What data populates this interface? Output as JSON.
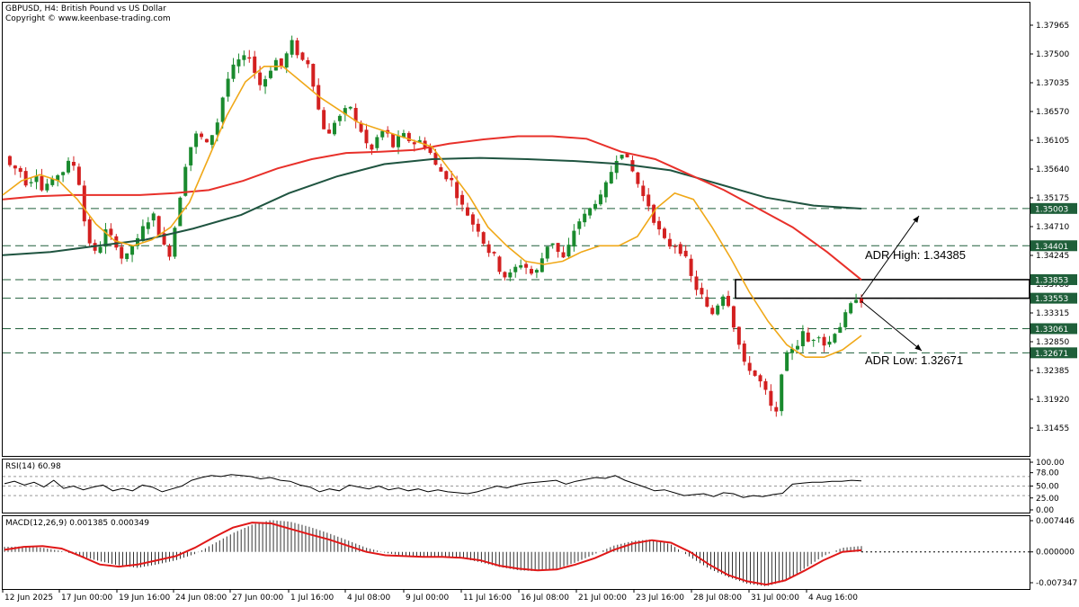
{
  "header": {
    "title": "GBPUSD, H4:  British Pound vs US Dollar",
    "copyright": "Copyright © www.keenbase-trading.com"
  },
  "colors": {
    "up": "#1a8a2e",
    "down": "#d32020",
    "ma_fast": "#f0a818",
    "ma_mid": "#e8302a",
    "ma_slow": "#1f5440",
    "level_line": "#1f5f3a",
    "macd_signal": "#e01818",
    "histogram": "#000000"
  },
  "chart_data": {
    "type": "candlestick",
    "symbol": "GBPUSD",
    "timeframe": "H4",
    "ylim": [
      1.3125,
      1.3805
    ],
    "y_ticks": [
      "1.37965",
      "1.37500",
      "1.37035",
      "1.36570",
      "1.36105",
      "1.35640",
      "1.35175",
      "1.34710",
      "1.34245",
      "1.33780",
      "1.33315",
      "1.32850",
      "1.32385",
      "1.31920",
      "1.31455"
    ],
    "x_ticks": [
      "12 Jun 2025",
      "17 Jun 00:00",
      "19 Jun 16:00",
      "24 Jun 08:00",
      "27 Jun 00:00",
      "1 Jul 16:00",
      "4 Jul 08:00",
      "9 Jul 00:00",
      "11 Jul 16:00",
      "16 Jul 08:00",
      "21 Jul 00:00",
      "23 Jul 16:00",
      "28 Jul 08:00",
      "31 Jul 00:00",
      "4 Aug 16:00"
    ],
    "price_path": [
      1.3585,
      1.357,
      1.3565,
      1.356,
      1.354,
      1.3545,
      1.3555,
      1.353,
      1.354,
      1.3545,
      1.3555,
      1.356,
      1.3575,
      1.357,
      1.354,
      1.348,
      1.3445,
      1.343,
      1.344,
      1.3465,
      1.3455,
      1.344,
      1.342,
      1.3425,
      1.344,
      1.345,
      1.347,
      1.348,
      1.349,
      1.346,
      1.344,
      1.3425,
      1.347,
      1.352,
      1.357,
      1.36,
      1.362,
      1.3615,
      1.3605,
      1.362,
      1.364,
      1.368,
      1.371,
      1.373,
      1.374,
      1.3745,
      1.3745,
      1.372,
      1.37,
      1.371,
      1.3725,
      1.374,
      1.373,
      1.375,
      1.377,
      1.375,
      1.374,
      1.3735,
      1.37,
      1.366,
      1.363,
      1.362,
      1.364,
      1.365,
      1.366,
      1.3665,
      1.364,
      1.3625,
      1.3605,
      1.3595,
      1.3615,
      1.3625,
      1.362,
      1.36,
      1.3615,
      1.362,
      1.361,
      1.3605,
      1.361,
      1.36,
      1.359,
      1.357,
      1.356,
      1.355,
      1.3545,
      1.352,
      1.3505,
      1.349,
      1.3475,
      1.3465,
      1.3445,
      1.343,
      1.3425,
      1.34,
      1.339,
      1.3395,
      1.3405,
      1.341,
      1.3405,
      1.3395,
      1.34,
      1.342,
      1.344,
      1.3445,
      1.343,
      1.342,
      1.344,
      1.3465,
      1.348,
      1.349,
      1.35,
      1.351,
      1.352,
      1.354,
      1.356,
      1.358,
      1.359,
      1.358,
      1.356,
      1.354,
      1.352,
      1.3505,
      1.348,
      1.3465,
      1.345,
      1.344,
      1.344,
      1.343,
      1.342,
      1.339,
      1.337,
      1.336,
      1.334,
      1.333,
      1.3345,
      1.336,
      1.3345,
      1.331,
      1.328,
      1.325,
      1.324,
      1.323,
      1.322,
      1.3205,
      1.318,
      1.317,
      1.3235,
      1.3265,
      1.3275,
      1.328,
      1.33,
      1.3285,
      1.329,
      1.3295,
      1.328,
      1.3285,
      1.33,
      1.331,
      1.333,
      1.3345,
      1.3355,
      1.335
    ],
    "moving_averages": {
      "fast": [
        1.3522,
        1.3545,
        1.3555,
        1.3545,
        1.3515,
        1.3475,
        1.3448,
        1.344,
        1.345,
        1.347,
        1.351,
        1.358,
        1.365,
        1.3705,
        1.373,
        1.373,
        1.3705,
        1.368,
        1.366,
        1.364,
        1.363,
        1.362,
        1.361,
        1.36,
        1.356,
        1.352,
        1.347,
        1.344,
        1.3415,
        1.341,
        1.3415,
        1.343,
        1.344,
        1.344,
        1.3455,
        1.35,
        1.3525,
        1.3515,
        1.347,
        1.342,
        1.3365,
        1.3318,
        1.328,
        1.326,
        1.326,
        1.3272,
        1.3295
      ],
      "mid": [
        1.3515,
        1.352,
        1.3522,
        1.3522,
        1.3522,
        1.3525,
        1.353,
        1.3545,
        1.3565,
        1.358,
        1.359,
        1.3592,
        1.3595,
        1.3605,
        1.3612,
        1.3617,
        1.3617,
        1.3613,
        1.3592,
        1.358,
        1.3555,
        1.353,
        1.35,
        1.347,
        1.343,
        1.3385
      ],
      "slow": [
        1.3425,
        1.343,
        1.344,
        1.345,
        1.3468,
        1.349,
        1.3525,
        1.3552,
        1.3572,
        1.358,
        1.3582,
        1.358,
        1.3577,
        1.3572,
        1.3562,
        1.354,
        1.3518,
        1.3505,
        1.35
      ]
    },
    "levels": [
      {
        "label": "1.35003",
        "value": 1.35003
      },
      {
        "label": "1.34401",
        "value": 1.34401
      },
      {
        "label": "1.33853",
        "value": 1.33853
      },
      {
        "label": "1.33553",
        "value": 1.33553
      },
      {
        "label": "1.33061",
        "value": 1.33061
      },
      {
        "label": "1.32671",
        "value": 1.32671
      }
    ],
    "annotations": {
      "adr_high": "ADR High: 1.34385",
      "adr_low": "ADR Low: 1.32671",
      "range_box": [
        1.33553,
        1.33853
      ]
    },
    "rsi": {
      "title": "RSI(14) 60.98",
      "ticks": [
        "100.00",
        "78.00",
        "50.00",
        "25.00",
        "0.00"
      ],
      "ylim": [
        0,
        100
      ],
      "levels": [
        70,
        50,
        30
      ],
      "values": [
        55,
        60,
        52,
        58,
        48,
        62,
        45,
        50,
        42,
        48,
        52,
        40,
        45,
        40,
        52,
        48,
        38,
        44,
        50,
        62,
        68,
        72,
        70,
        74,
        72,
        70,
        65,
        68,
        62,
        60,
        52,
        48,
        38,
        44,
        40,
        52,
        48,
        44,
        50,
        42,
        46,
        40,
        44,
        38,
        42,
        38,
        36,
        34,
        38,
        44,
        50,
        46,
        52,
        56,
        58,
        60,
        62,
        54,
        60,
        64,
        68,
        66,
        72,
        62,
        55,
        48,
        40,
        42,
        36,
        30,
        32,
        34,
        28,
        36,
        34,
        26,
        30,
        28,
        32,
        35,
        54,
        56,
        58,
        58,
        60,
        60,
        62,
        61
      ]
    },
    "macd": {
      "title": "MACD(12,26,9) 0.001385 0.000349",
      "ticks": [
        "0.007446",
        "0.000000",
        "-0.007347"
      ],
      "ylim": [
        -0.008,
        0.008
      ],
      "signal": [
        0.0005,
        0.0012,
        0.0014,
        0.0008,
        -0.001,
        -0.003,
        -0.0035,
        -0.003,
        -0.002,
        -0.001,
        0.001,
        0.0035,
        0.0058,
        0.007,
        0.0068,
        0.0055,
        0.0042,
        0.003,
        0.0015,
        0.0,
        -0.0008,
        -0.001,
        -0.0012,
        -0.0012,
        -0.0014,
        -0.002,
        -0.0033,
        -0.004,
        -0.0044,
        -0.0042,
        -0.003,
        -0.0015,
        0.0005,
        0.002,
        0.0028,
        0.0022,
        0.0,
        -0.003,
        -0.0055,
        -0.007,
        -0.0078,
        -0.0068,
        -0.0045,
        -0.002,
        0.0,
        0.0004
      ],
      "histogram": [
        0.0012,
        0.0013,
        0.001,
        0.0002,
        -0.001,
        -0.0022,
        -0.0032,
        -0.0038,
        -0.003,
        -0.002,
        -0.0005,
        0.002,
        0.0045,
        0.0065,
        0.0076,
        0.0072,
        0.006,
        0.0045,
        0.0028,
        0.001,
        -0.0002,
        -0.001,
        -0.0012,
        -0.001,
        -0.0015,
        -0.0025,
        -0.0036,
        -0.0044,
        -0.0046,
        -0.004,
        -0.0025,
        -0.0005,
        0.0015,
        0.0026,
        0.003,
        0.0018,
        -0.0012,
        -0.004,
        -0.006,
        -0.0076,
        -0.0082,
        -0.007,
        -0.004,
        -0.001,
        0.001,
        0.0014
      ]
    }
  }
}
